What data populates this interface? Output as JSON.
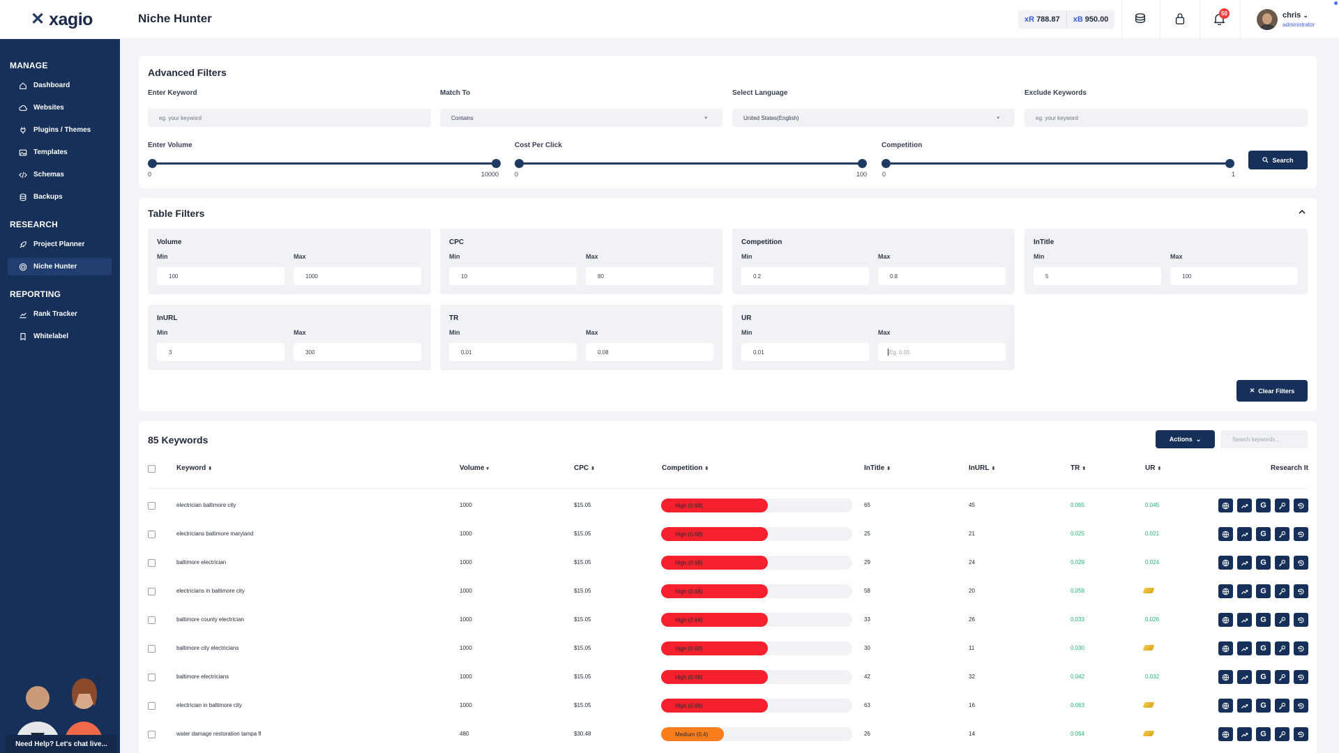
{
  "app": {
    "page_title": "Niche Hunter",
    "logo_text": "xagio"
  },
  "topbar": {
    "credits": [
      {
        "prefix": "xR",
        "value": "788.87"
      },
      {
        "prefix": "xB",
        "value": "950.00"
      }
    ],
    "icons": [
      "coins-icon",
      "lock-icon",
      "bell-icon"
    ],
    "notification_count": "50",
    "user": {
      "name": "chris",
      "role": "administrator"
    }
  },
  "sidebar": {
    "sections": [
      {
        "title": "MANAGE",
        "items": [
          {
            "label": "Dashboard",
            "icon": "home-icon"
          },
          {
            "label": "Websites",
            "icon": "cloud-icon"
          },
          {
            "label": "Plugins / Themes",
            "icon": "plug-icon"
          },
          {
            "label": "Templates",
            "icon": "image-icon"
          },
          {
            "label": "Schemas",
            "icon": "code-icon"
          },
          {
            "label": "Backups",
            "icon": "database-icon"
          }
        ]
      },
      {
        "title": "RESEARCH",
        "items": [
          {
            "label": "Project Planner",
            "icon": "rocket-icon"
          },
          {
            "label": "Niche Hunter",
            "icon": "target-icon",
            "active": true
          }
        ]
      },
      {
        "title": "REPORTING",
        "items": [
          {
            "label": "Rank Tracker",
            "icon": "chart-icon"
          },
          {
            "label": "Whitelabel",
            "icon": "bookmark-icon"
          }
        ]
      }
    ],
    "help_text": "Need Help? Let's chat live..."
  },
  "advanced_filters": {
    "title": "Advanced Filters",
    "keyword": {
      "label": "Enter Keyword",
      "placeholder": "eg. your keyword"
    },
    "match_to": {
      "label": "Match To",
      "value": "Contains"
    },
    "language": {
      "label": "Select Language",
      "value": "United States(English)"
    },
    "exclude": {
      "label": "Exclude Keywords",
      "placeholder": "eg. your keyword"
    },
    "volume": {
      "label": "Enter Volume",
      "min": "0",
      "max": "10000"
    },
    "cpc": {
      "label": "Cost Per Click",
      "min": "0",
      "max": "100"
    },
    "competition": {
      "label": "Competition",
      "min": "0",
      "max": "1"
    },
    "search_label": "Search"
  },
  "table_filters": {
    "title": "Table Filters",
    "min_label": "Min",
    "max_label": "Max",
    "groups": [
      {
        "title": "Volume",
        "min": "100",
        "max": "1000"
      },
      {
        "title": "CPC",
        "min": "10",
        "max": "80"
      },
      {
        "title": "Competition",
        "min": "0.2",
        "max": "0.8"
      },
      {
        "title": "InTitle",
        "min": "5",
        "max": "100"
      },
      {
        "title": "InURL",
        "min": "3",
        "max": "300"
      },
      {
        "title": "TR",
        "min": "0.01",
        "max": "0.08"
      },
      {
        "title": "UR",
        "min": "0.01",
        "max": "",
        "max_placeholder": "Eg. 0.05"
      }
    ],
    "clear_label": "Clear Filters"
  },
  "keywords": {
    "title": "85 Keywords",
    "actions_label": "Actions",
    "search_placeholder": "Search keywords...",
    "columns": [
      "Keyword",
      "Volume",
      "CPC",
      "Competition",
      "InTitle",
      "InURL",
      "TR",
      "UR",
      "Research It"
    ],
    "research_icons": [
      "globe-icon",
      "trend-icon",
      "google-icon",
      "key-icon",
      "history-icon"
    ],
    "status_colors": {
      "high": "#f5222d",
      "medium": "#fa7d1e",
      "value_green": "#1fb86b"
    },
    "rows": [
      {
        "keyword": "electrician baltimore city",
        "volume": "1000",
        "cpc": "$15.05",
        "competition": "High (0.68)",
        "level": "high",
        "score": 0.68,
        "intitle": "65",
        "inurl": "45",
        "tr": "0.065",
        "ur": "0.045"
      },
      {
        "keyword": "electricians baltimore maryland",
        "volume": "1000",
        "cpc": "$15.05",
        "competition": "High (0.68)",
        "level": "high",
        "score": 0.68,
        "intitle": "25",
        "inurl": "21",
        "tr": "0.025",
        "ur": "0.021"
      },
      {
        "keyword": "baltimore electrician",
        "volume": "1000",
        "cpc": "$15.05",
        "competition": "High (0.68)",
        "level": "high",
        "score": 0.68,
        "intitle": "29",
        "inurl": "24",
        "tr": "0.029",
        "ur": "0.024"
      },
      {
        "keyword": "electricians in baltimore city",
        "volume": "1000",
        "cpc": "$15.05",
        "competition": "High (0.68)",
        "level": "high",
        "score": 0.68,
        "intitle": "58",
        "inurl": "20",
        "tr": "0.058",
        "ur": ""
      },
      {
        "keyword": "baltimore county electrician",
        "volume": "1000",
        "cpc": "$15.05",
        "competition": "High (0.68)",
        "level": "high",
        "score": 0.68,
        "intitle": "33",
        "inurl": "26",
        "tr": "0.033",
        "ur": "0.026"
      },
      {
        "keyword": "baltimore city electricians",
        "volume": "1000",
        "cpc": "$15.05",
        "competition": "High (0.68)",
        "level": "high",
        "score": 0.68,
        "intitle": "30",
        "inurl": "11",
        "tr": "0.030",
        "ur": ""
      },
      {
        "keyword": "baltimore electricians",
        "volume": "1000",
        "cpc": "$15.05",
        "competition": "High (0.68)",
        "level": "high",
        "score": 0.68,
        "intitle": "42",
        "inurl": "32",
        "tr": "0.042",
        "ur": "0.032"
      },
      {
        "keyword": "electrician in baltimore city",
        "volume": "1000",
        "cpc": "$15.05",
        "competition": "High (0.68)",
        "level": "high",
        "score": 0.68,
        "intitle": "63",
        "inurl": "16",
        "tr": "0.063",
        "ur": ""
      },
      {
        "keyword": "water damage restoration tampa fl",
        "volume": "480",
        "cpc": "$30.48",
        "competition": "Medium (0.4)",
        "level": "medium",
        "score": 0.4,
        "intitle": "26",
        "inurl": "14",
        "tr": "0.054",
        "ur": ""
      }
    ]
  }
}
